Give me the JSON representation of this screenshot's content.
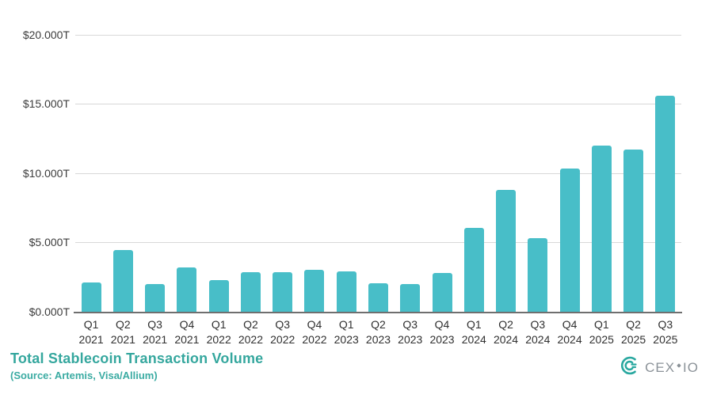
{
  "chart_data": {
    "type": "bar",
    "title": "Total Stablecoin Transaction Volume",
    "subtitle": "(Source: Artemis, Visa/Allium)",
    "xlabel": "",
    "ylabel": "",
    "ylim": [
      0,
      20
    ],
    "grid": true,
    "legend": false,
    "bar_color": "#48bec8",
    "value_unit": "trillion USD",
    "categories": [
      "Q1 2021",
      "Q2 2021",
      "Q3 2021",
      "Q4 2021",
      "Q1 2022",
      "Q2 2022",
      "Q3 2022",
      "Q4 2022",
      "Q1 2023",
      "Q2 2023",
      "Q3 2023",
      "Q4 2023",
      "Q1 2024",
      "Q2 2024",
      "Q3 2024",
      "Q4 2024",
      "Q1 2025",
      "Q2 2025",
      "Q3 2025"
    ],
    "values": [
      2.1,
      4.45,
      2.0,
      3.2,
      2.25,
      2.85,
      2.85,
      3.0,
      2.9,
      2.05,
      1.95,
      2.8,
      6.05,
      8.8,
      5.3,
      10.3,
      12.0,
      11.7,
      15.55
    ],
    "y_ticks": [
      {
        "label": "$0.000T",
        "value": 0
      },
      {
        "label": "$5.000T",
        "value": 5
      },
      {
        "label": "$10.000T",
        "value": 10
      },
      {
        "label": "$15.000T",
        "value": 15
      },
      {
        "label": "$20.000T",
        "value": 20
      }
    ]
  },
  "footer": {
    "title": "Total Stablecoin Transaction Volume",
    "source": "(Source: Artemis, Visa/Allium)"
  },
  "logo": {
    "text_main": "CEX",
    "text_suffix": "IO",
    "icon_name": "cexio-arcs-icon",
    "icon_color": "#2aa8a0",
    "text_color": "#8b9298"
  }
}
